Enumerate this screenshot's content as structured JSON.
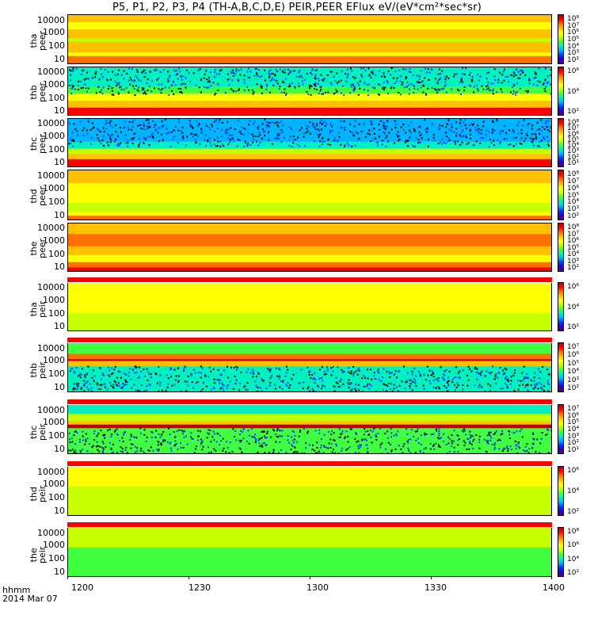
{
  "title": "P5, P1, P2, P3, P4 (TH-A,B,C,D,E) PEIR,PEER EFlux eV/(eV*cm²*sec*sr)",
  "x_ticks": [
    "1200",
    "1230",
    "1300",
    "1330",
    "1400"
  ],
  "footer": {
    "line1": "hhmm",
    "line2": "2014 Mar 07"
  },
  "colormap": [
    "#5b0070",
    "#2e00c8",
    "#0040ff",
    "#00b4ff",
    "#00f0c0",
    "#40ff40",
    "#c8ff00",
    "#ffff00",
    "#ffc000",
    "#ff7000",
    "#ff0000",
    "#c00000"
  ],
  "chart_data": {
    "type": "heatmap",
    "x_range": [
      "1200",
      "1400"
    ],
    "panels": [
      {
        "id": "tha",
        "line1": "tha",
        "line2": "peer",
        "y_ticks": [
          "10000",
          "1000",
          "100",
          "10"
        ],
        "cbar_ticks": [
          "10⁸",
          "10⁷",
          "10⁶",
          "10⁵",
          "10⁴",
          "10³",
          "10²"
        ]
      },
      {
        "id": "thb",
        "line1": "thb",
        "line2": "peer",
        "y_ticks": [
          "10000",
          "1000",
          "100",
          "10"
        ],
        "cbar_ticks": [
          "10⁶",
          "10⁴",
          "10²"
        ]
      },
      {
        "id": "thc",
        "line1": "thc",
        "line2": "peer",
        "y_ticks": [
          "10000",
          "1000",
          "100",
          "10"
        ],
        "cbar_ticks": [
          "10⁸",
          "10⁷",
          "10⁶",
          "10⁵",
          "10⁴",
          "10³",
          "10²",
          "10¹"
        ]
      },
      {
        "id": "thd",
        "line1": "thd",
        "line2": "peer",
        "y_ticks": [
          "10000",
          "1000",
          "100",
          "10"
        ],
        "cbar_ticks": [
          "10⁸",
          "10⁷",
          "10⁶",
          "10⁵",
          "10⁴",
          "10³",
          "10²"
        ]
      },
      {
        "id": "the",
        "line1": "the",
        "line2": "peer",
        "y_ticks": [
          "10000",
          "1000",
          "100",
          "10"
        ],
        "cbar_ticks": [
          "10⁸",
          "10⁷",
          "10⁶",
          "10⁵",
          "10⁴",
          "10³",
          "10²"
        ]
      },
      {
        "id": "tha_i",
        "line1": "tha",
        "line2": "peir",
        "y_ticks": [
          "10000",
          "1000",
          "100",
          "10"
        ],
        "cbar_ticks": [
          "10⁶",
          "10⁴",
          "10²"
        ]
      },
      {
        "id": "thb_i",
        "line1": "thb",
        "line2": "peir",
        "y_ticks": [
          "10000",
          "1000",
          "100",
          "10"
        ],
        "cbar_ticks": [
          "10⁷",
          "10⁶",
          "10⁵",
          "10⁴",
          "10³",
          "10²"
        ]
      },
      {
        "id": "thc_i",
        "line1": "thc",
        "line2": "peir",
        "y_ticks": [
          "10000",
          "1000",
          "100",
          "10"
        ],
        "cbar_ticks": [
          "10⁷",
          "10⁶",
          "10⁵",
          "10⁴",
          "10³",
          "10²",
          "10¹"
        ]
      },
      {
        "id": "thd_i",
        "line1": "thd",
        "line2": "peir",
        "y_ticks": [
          "10000",
          "1000",
          "100",
          "10"
        ],
        "cbar_ticks": [
          "10⁶",
          "10⁴",
          "10²"
        ]
      },
      {
        "id": "the_i",
        "line1": "the",
        "line2": "peir",
        "y_ticks": [
          "10000",
          "1000",
          "100",
          "10"
        ],
        "cbar_ticks": [
          "10⁸",
          "10⁶",
          "10⁴",
          "10²"
        ]
      }
    ]
  }
}
